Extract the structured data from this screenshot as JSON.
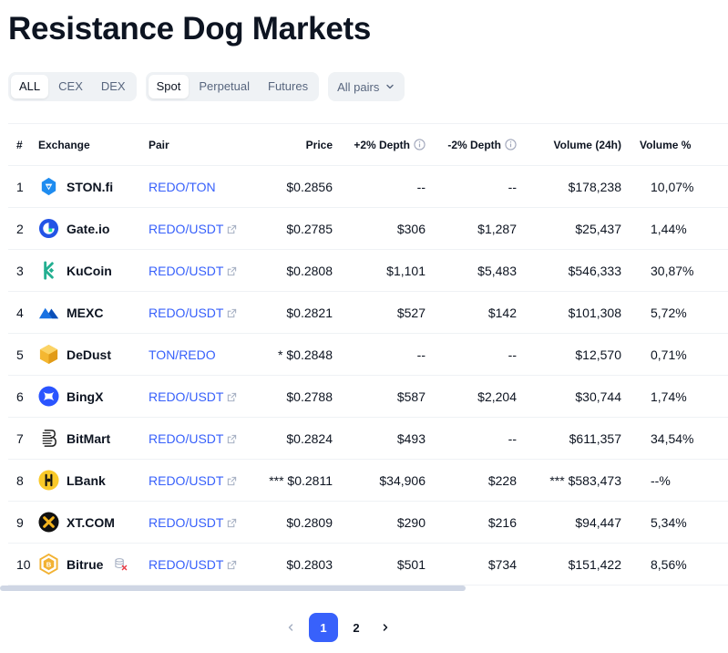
{
  "page": {
    "title": "Resistance Dog Markets"
  },
  "filters": {
    "type_tabs": [
      {
        "label": "ALL",
        "active": true
      },
      {
        "label": "CEX",
        "active": false
      },
      {
        "label": "DEX",
        "active": false
      }
    ],
    "market_tabs": [
      {
        "label": "Spot",
        "active": true
      },
      {
        "label": "Perpetual",
        "active": false
      },
      {
        "label": "Futures",
        "active": false
      }
    ],
    "pairs_dropdown": {
      "label": "All pairs"
    }
  },
  "table": {
    "headers": {
      "num": "#",
      "exchange": "Exchange",
      "pair": "Pair",
      "price": "Price",
      "plus_depth": "+2% Depth",
      "minus_depth": "-2% Depth",
      "volume_24h": "Volume (24h)",
      "volume_pct": "Volume %"
    },
    "rows": [
      {
        "num": "1",
        "exchange": "STON.fi",
        "logo": "stonfi-logo",
        "pair": "REDO/TON",
        "external": false,
        "price": "$0.2856",
        "plus_depth": "--",
        "minus_depth": "--",
        "volume": "$178,238",
        "volume_pct": "10,07%"
      },
      {
        "num": "2",
        "exchange": "Gate.io",
        "logo": "gateio-logo",
        "pair": "REDO/USDT",
        "external": true,
        "price": "$0.2785",
        "plus_depth": "$306",
        "minus_depth": "$1,287",
        "volume": "$25,437",
        "volume_pct": "1,44%"
      },
      {
        "num": "3",
        "exchange": "KuCoin",
        "logo": "kucoin-logo",
        "pair": "REDO/USDT",
        "external": true,
        "price": "$0.2808",
        "plus_depth": "$1,101",
        "minus_depth": "$5,483",
        "volume": "$546,333",
        "volume_pct": "30,87%"
      },
      {
        "num": "4",
        "exchange": "MEXC",
        "logo": "mexc-logo",
        "pair": "REDO/USDT",
        "external": true,
        "price": "$0.2821",
        "plus_depth": "$527",
        "minus_depth": "$142",
        "volume": "$101,308",
        "volume_pct": "5,72%"
      },
      {
        "num": "5",
        "exchange": "DeDust",
        "logo": "dedust-logo",
        "pair": "TON/REDO",
        "external": false,
        "price": "* $0.2848",
        "plus_depth": "--",
        "minus_depth": "--",
        "volume": "$12,570",
        "volume_pct": "0,71%"
      },
      {
        "num": "6",
        "exchange": "BingX",
        "logo": "bingx-logo",
        "pair": "REDO/USDT",
        "external": true,
        "price": "$0.2788",
        "plus_depth": "$587",
        "minus_depth": "$2,204",
        "volume": "$30,744",
        "volume_pct": "1,74%"
      },
      {
        "num": "7",
        "exchange": "BitMart",
        "logo": "bitmart-logo",
        "pair": "REDO/USDT",
        "external": true,
        "price": "$0.2824",
        "plus_depth": "$493",
        "minus_depth": "--",
        "volume": "$611,357",
        "volume_pct": "34,54%"
      },
      {
        "num": "8",
        "exchange": "LBank",
        "logo": "lbank-logo",
        "pair": "REDO/USDT",
        "external": true,
        "price": "*** $0.2811",
        "plus_depth": "$34,906",
        "minus_depth": "$228",
        "volume": "*** $583,473",
        "volume_pct": "--%"
      },
      {
        "num": "9",
        "exchange": "XT.COM",
        "logo": "xtcom-logo",
        "pair": "REDO/USDT",
        "external": true,
        "price": "$0.2809",
        "plus_depth": "$290",
        "minus_depth": "$216",
        "volume": "$94,447",
        "volume_pct": "5,34%"
      },
      {
        "num": "10",
        "exchange": "Bitrue",
        "logo": "bitrue-logo",
        "pair": "REDO/USDT",
        "external": true,
        "price": "$0.2803",
        "plus_depth": "$501",
        "minus_depth": "$734",
        "volume": "$151,422",
        "volume_pct": "8,56%",
        "warning": true
      }
    ]
  },
  "pagination": {
    "pages": [
      "1",
      "2"
    ],
    "current": "1"
  },
  "colors": {
    "accent": "#3861fb",
    "text": "#0d1421",
    "muted": "#58667e",
    "border": "#eff2f5"
  }
}
